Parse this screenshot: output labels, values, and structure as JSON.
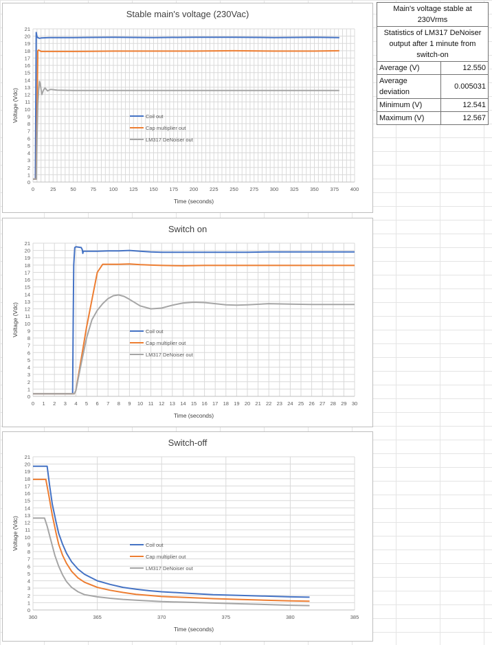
{
  "stats_table": {
    "header": "Main's voltage stable at 230Vrms",
    "subheader": "Statistics of LM317 DeNoiser output after 1 minute from switch-on",
    "rows": [
      {
        "label": "Average  (V)",
        "value": "12.550"
      },
      {
        "label": "Average deviation",
        "value": "0.005031"
      },
      {
        "label": "Minimum (V)",
        "value": "12.541"
      },
      {
        "label": "Maximum (V)",
        "value": "12.567"
      }
    ]
  },
  "colors": {
    "coil": "#4472c4",
    "cap": "#ed7d31",
    "lm317": "#a5a5a5",
    "grid": "#d9d9d9",
    "axis": "#bfbfbf"
  },
  "chart_data": [
    {
      "type": "line",
      "title": "Stable main's voltage (230Vac)",
      "xlabel": "Time (seconds)",
      "ylabel": "Voltage (Vdc)",
      "xlim": [
        0,
        400
      ],
      "ylim": [
        0,
        21
      ],
      "xticks": [
        0,
        25,
        50,
        75,
        100,
        125,
        150,
        175,
        200,
        225,
        250,
        275,
        300,
        325,
        350,
        375,
        400
      ],
      "yticks": [
        0,
        1,
        2,
        3,
        4,
        5,
        6,
        7,
        8,
        9,
        10,
        11,
        12,
        13,
        14,
        15,
        16,
        17,
        18,
        19,
        20,
        21
      ],
      "x_grid": "minor",
      "legend": "inside-center-left",
      "series": [
        {
          "name": "Coil out",
          "x": [
            0,
            3,
            4,
            4.5,
            5,
            6,
            8,
            10,
            20,
            50,
            100,
            150,
            200,
            250,
            300,
            350,
            381
          ],
          "y": [
            0.4,
            0.4,
            20.5,
            20.2,
            19.9,
            19.8,
            19.7,
            19.75,
            19.8,
            19.8,
            19.85,
            19.8,
            19.85,
            19.85,
            19.8,
            19.85,
            19.8
          ]
        },
        {
          "name": "Cap multiplier out",
          "x": [
            0,
            3.8,
            4,
            6,
            7,
            10,
            20,
            50,
            100,
            150,
            200,
            250,
            300,
            350,
            381
          ],
          "y": [
            0.4,
            0.4,
            0.4,
            18.0,
            18.1,
            17.9,
            17.9,
            17.9,
            17.95,
            17.95,
            17.95,
            18.0,
            17.95,
            17.95,
            18.0
          ]
        },
        {
          "name": "LM317 DeNoiser out",
          "x": [
            0,
            3.8,
            4.2,
            5,
            6,
            7,
            8,
            9,
            11,
            13,
            15,
            18,
            22,
            30,
            50,
            100,
            200,
            300,
            381
          ],
          "y": [
            0.4,
            0.4,
            0.4,
            6.0,
            10.5,
            12.5,
            13.8,
            13.5,
            12.0,
            12.6,
            12.9,
            12.5,
            12.7,
            12.6,
            12.55,
            12.55,
            12.55,
            12.55,
            12.55
          ]
        }
      ]
    },
    {
      "type": "line",
      "title": "Switch on",
      "xlabel": "Time (seconds)",
      "ylabel": "Voltage (Vdc)",
      "xlim": [
        0,
        30
      ],
      "ylim": [
        0,
        21
      ],
      "xticks": [
        0,
        1,
        2,
        3,
        4,
        5,
        6,
        7,
        8,
        9,
        10,
        11,
        12,
        13,
        14,
        15,
        16,
        17,
        18,
        19,
        20,
        21,
        22,
        23,
        24,
        25,
        26,
        27,
        28,
        29,
        30
      ],
      "yticks": [
        0,
        1,
        2,
        3,
        4,
        5,
        6,
        7,
        8,
        9,
        10,
        11,
        12,
        13,
        14,
        15,
        16,
        17,
        18,
        19,
        20,
        21
      ],
      "x_grid": "major",
      "legend": "inside-center",
      "series": [
        {
          "name": "Coil out",
          "x": [
            0,
            3.7,
            3.75,
            3.8,
            3.9,
            4.0,
            4.5,
            4.6,
            4.65,
            4.7,
            5,
            6,
            7,
            8,
            9,
            10,
            11,
            12,
            14,
            16,
            18,
            20,
            22,
            24,
            26,
            28,
            30
          ],
          "y": [
            0.35,
            0.35,
            10,
            18,
            20.4,
            20.5,
            20.4,
            20.1,
            19.6,
            19.9,
            19.9,
            19.9,
            19.95,
            19.95,
            20.0,
            19.9,
            19.8,
            19.75,
            19.75,
            19.75,
            19.75,
            19.75,
            19.8,
            19.8,
            19.8,
            19.8,
            19.8
          ]
        },
        {
          "name": "Cap multiplier out",
          "x": [
            0,
            3.85,
            4.0,
            5,
            6,
            6.5,
            7,
            8,
            9,
            10,
            11,
            12,
            14,
            16,
            18,
            20,
            22,
            24,
            26,
            28,
            30
          ],
          "y": [
            0.35,
            0.35,
            0.8,
            9.5,
            17.0,
            18.1,
            18.1,
            18.1,
            18.15,
            18.05,
            18.0,
            17.95,
            17.9,
            17.95,
            17.95,
            17.95,
            17.95,
            17.95,
            17.95,
            17.95,
            17.95
          ]
        },
        {
          "name": "LM317 DeNoiser out",
          "x": [
            0,
            3.85,
            4.0,
            4.5,
            5,
            5.5,
            6,
            6.5,
            7,
            7.5,
            8,
            8.5,
            9,
            10,
            11,
            12,
            13,
            14,
            15,
            16,
            17,
            18,
            19,
            20,
            22,
            24,
            26,
            28,
            30
          ],
          "y": [
            0.35,
            0.35,
            0.8,
            4.5,
            8.0,
            10.5,
            11.8,
            12.7,
            13.4,
            13.8,
            13.9,
            13.7,
            13.3,
            12.4,
            12.0,
            12.1,
            12.5,
            12.8,
            12.9,
            12.85,
            12.7,
            12.55,
            12.5,
            12.55,
            12.7,
            12.65,
            12.6,
            12.6,
            12.6
          ]
        }
      ]
    },
    {
      "type": "line",
      "title": "Switch-off",
      "xlabel": "Time (seconds)",
      "ylabel": "Voltage (Vdc)",
      "xlim": [
        360,
        385
      ],
      "ylim": [
        0,
        21
      ],
      "xticks": [
        360,
        365,
        370,
        375,
        380,
        385
      ],
      "yticks": [
        0,
        1,
        2,
        3,
        4,
        5,
        6,
        7,
        8,
        9,
        10,
        11,
        12,
        13,
        14,
        15,
        16,
        17,
        18,
        19,
        20,
        21
      ],
      "x_grid": "major",
      "legend": "inside-center",
      "series": [
        {
          "name": "Coil out",
          "x": [
            360,
            361.1,
            361.3,
            361.5,
            361.8,
            362,
            362.3,
            362.6,
            363,
            363.5,
            364,
            365,
            366,
            367,
            368,
            369,
            370,
            372,
            374,
            376,
            378,
            380,
            381.5
          ],
          "y": [
            19.7,
            19.7,
            17,
            14.5,
            12,
            10.5,
            9,
            7.8,
            6.6,
            5.6,
            4.9,
            4.0,
            3.5,
            3.1,
            2.85,
            2.65,
            2.5,
            2.3,
            2.1,
            2.0,
            1.9,
            1.8,
            1.75
          ]
        },
        {
          "name": "Cap multiplier out",
          "x": [
            360,
            361.0,
            361.2,
            361.5,
            361.8,
            362,
            362.3,
            362.6,
            363,
            363.5,
            364,
            365,
            366,
            367,
            368,
            369,
            370,
            372,
            374,
            376,
            378,
            380,
            381.5
          ],
          "y": [
            17.9,
            17.9,
            16,
            13,
            10.5,
            9,
            7.5,
            6.4,
            5.3,
            4.4,
            3.8,
            3.1,
            2.7,
            2.4,
            2.15,
            2.0,
            1.85,
            1.7,
            1.55,
            1.45,
            1.35,
            1.25,
            1.2
          ]
        },
        {
          "name": "LM317 DeNoiser out",
          "x": [
            360,
            360.9,
            361.1,
            361.4,
            361.7,
            362,
            362.3,
            362.6,
            363,
            363.5,
            364,
            365,
            366,
            367,
            368,
            369,
            370,
            372,
            374,
            376,
            378,
            380,
            381.5
          ],
          "y": [
            12.6,
            12.6,
            11.5,
            9.5,
            7.5,
            6.0,
            4.8,
            3.9,
            3.1,
            2.5,
            2.1,
            1.8,
            1.6,
            1.45,
            1.35,
            1.25,
            1.15,
            1.05,
            0.95,
            0.85,
            0.75,
            0.65,
            0.6
          ]
        }
      ]
    }
  ]
}
